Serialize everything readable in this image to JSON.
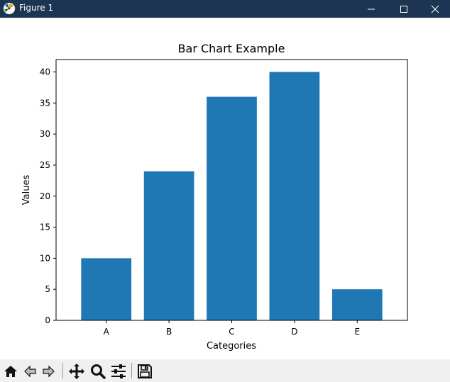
{
  "window": {
    "title": "Figure 1",
    "titlebar_color": "#1b3553",
    "controls": [
      "minimize-icon",
      "maximize-icon",
      "close-icon"
    ]
  },
  "toolbar": {
    "background": "#f0f0f0",
    "tools": [
      "home-icon",
      "back-icon",
      "forward-icon",
      "pan-icon",
      "zoom-icon",
      "configure-subplots-icon",
      "save-icon"
    ]
  },
  "chart_data": {
    "type": "bar",
    "title": "Bar Chart Example",
    "xlabel": "Categories",
    "ylabel": "Values",
    "categories": [
      "A",
      "B",
      "C",
      "D",
      "E"
    ],
    "values": [
      10,
      24,
      36,
      40,
      5
    ],
    "ylim": [
      0,
      42
    ],
    "yticks": [
      0,
      5,
      10,
      15,
      20,
      25,
      30,
      35,
      40
    ],
    "bar_color": "#1f77b4",
    "grid": false
  }
}
